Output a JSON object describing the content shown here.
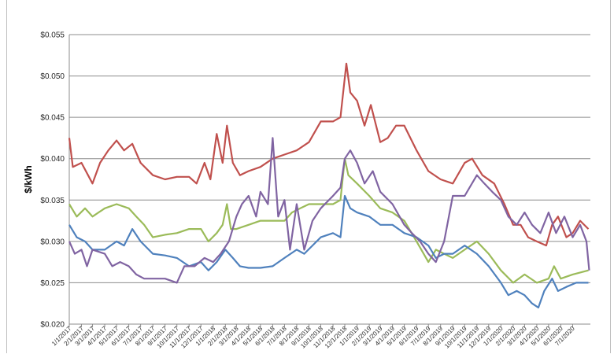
{
  "chart_data": {
    "type": "line",
    "title": "",
    "xlabel": "",
    "ylabel": "$/kWh",
    "ylim": [
      0.02,
      0.055
    ],
    "y_ticks": [
      0.02,
      0.025,
      0.03,
      0.035,
      0.04,
      0.045,
      0.05,
      0.055
    ],
    "y_tick_labels": [
      "$0.020",
      "$0.025",
      "$0.030",
      "$0.035",
      "$0.040",
      "$0.045",
      "$0.050",
      "$0.055"
    ],
    "x_start": "2017-01-01",
    "x_end": "2020-08-15",
    "x_tick_labels": [
      "1/1/2017",
      "2/1/2017",
      "3/1/2017",
      "4/1/2017",
      "5/1/2017",
      "6/1/2017",
      "7/1/2017",
      "8/1/2017",
      "9/1/2017",
      "10/1/2017",
      "11/1/2017",
      "12/1/2017",
      "1/1/2018",
      "2/1/2018",
      "3/1/2018",
      "4/1/2018",
      "5/1/2018",
      "6/1/2018",
      "7/1/2018",
      "8/1/2018",
      "9/1/2018",
      "10/1/2018",
      "11/1/2018",
      "12/1/2018",
      "1/1/2019",
      "2/1/2019",
      "3/1/2019",
      "4/1/2019",
      "5/1/2019",
      "6/1/2019",
      "7/1/2019",
      "8/1/2019",
      "9/1/2019",
      "10/1/2019",
      "11/1/2019",
      "12/1/2019",
      "1/1/2020",
      "2/1/2020",
      "3/1/2020",
      "4/1/2020",
      "5/1/2020",
      "6/1/2020",
      "7/1/2020"
    ],
    "grid": true,
    "legend": "none",
    "series": [
      {
        "color": "#c0504d",
        "points": [
          [
            "2017-01-01",
            0.0425
          ],
          [
            "2017-01-10",
            0.039
          ],
          [
            "2017-02-01",
            0.0395
          ],
          [
            "2017-03-01",
            0.037
          ],
          [
            "2017-03-20",
            0.0395
          ],
          [
            "2017-04-10",
            0.041
          ],
          [
            "2017-05-01",
            0.0422
          ],
          [
            "2017-05-20",
            0.041
          ],
          [
            "2017-06-10",
            0.0418
          ],
          [
            "2017-07-01",
            0.0395
          ],
          [
            "2017-08-01",
            0.038
          ],
          [
            "2017-09-01",
            0.0375
          ],
          [
            "2017-10-01",
            0.0378
          ],
          [
            "2017-11-01",
            0.0378
          ],
          [
            "2017-11-20",
            0.037
          ],
          [
            "2017-12-10",
            0.0395
          ],
          [
            "2017-12-25",
            0.0375
          ],
          [
            "2018-01-10",
            0.043
          ],
          [
            "2018-01-25",
            0.0395
          ],
          [
            "2018-02-05",
            0.044
          ],
          [
            "2018-02-20",
            0.0395
          ],
          [
            "2018-03-10",
            0.038
          ],
          [
            "2018-04-01",
            0.0385
          ],
          [
            "2018-05-01",
            0.039
          ],
          [
            "2018-06-01",
            0.04
          ],
          [
            "2018-07-01",
            0.0405
          ],
          [
            "2018-08-01",
            0.041
          ],
          [
            "2018-09-01",
            0.042
          ],
          [
            "2018-10-01",
            0.0445
          ],
          [
            "2018-11-01",
            0.0445
          ],
          [
            "2018-11-20",
            0.045
          ],
          [
            "2018-12-05",
            0.0515
          ],
          [
            "2018-12-15",
            0.048
          ],
          [
            "2019-01-01",
            0.047
          ],
          [
            "2019-01-20",
            0.044
          ],
          [
            "2019-02-05",
            0.0465
          ],
          [
            "2019-03-01",
            0.042
          ],
          [
            "2019-03-20",
            0.0425
          ],
          [
            "2019-04-10",
            0.044
          ],
          [
            "2019-05-01",
            0.044
          ],
          [
            "2019-06-01",
            0.041
          ],
          [
            "2019-07-01",
            0.0385
          ],
          [
            "2019-08-01",
            0.0375
          ],
          [
            "2019-09-01",
            0.037
          ],
          [
            "2019-10-01",
            0.0395
          ],
          [
            "2019-10-20",
            0.04
          ],
          [
            "2019-11-15",
            0.038
          ],
          [
            "2019-12-15",
            0.037
          ],
          [
            "2020-01-10",
            0.0345
          ],
          [
            "2020-02-01",
            0.032
          ],
          [
            "2020-02-20",
            0.032
          ],
          [
            "2020-03-10",
            0.0305
          ],
          [
            "2020-04-01",
            0.03
          ],
          [
            "2020-04-25",
            0.0295
          ],
          [
            "2020-05-10",
            0.032
          ],
          [
            "2020-05-25",
            0.033
          ],
          [
            "2020-06-15",
            0.0305
          ],
          [
            "2020-07-01",
            0.031
          ],
          [
            "2020-07-20",
            0.0325
          ],
          [
            "2020-08-10",
            0.0315
          ]
        ]
      },
      {
        "color": "#9bbb59",
        "points": [
          [
            "2017-01-01",
            0.0345
          ],
          [
            "2017-01-20",
            0.033
          ],
          [
            "2017-02-10",
            0.034
          ],
          [
            "2017-03-01",
            0.033
          ],
          [
            "2017-04-01",
            0.034
          ],
          [
            "2017-05-01",
            0.0345
          ],
          [
            "2017-06-01",
            0.034
          ],
          [
            "2017-06-20",
            0.033
          ],
          [
            "2017-07-10",
            0.032
          ],
          [
            "2017-08-01",
            0.0305
          ],
          [
            "2017-09-01",
            0.0308
          ],
          [
            "2017-10-01",
            0.031
          ],
          [
            "2017-11-01",
            0.0315
          ],
          [
            "2017-12-01",
            0.0315
          ],
          [
            "2017-12-20",
            0.03
          ],
          [
            "2018-01-10",
            0.031
          ],
          [
            "2018-01-25",
            0.032
          ],
          [
            "2018-02-05",
            0.0345
          ],
          [
            "2018-02-15",
            0.0315
          ],
          [
            "2018-03-01",
            0.0315
          ],
          [
            "2018-04-01",
            0.032
          ],
          [
            "2018-05-01",
            0.0325
          ],
          [
            "2018-06-01",
            0.0325
          ],
          [
            "2018-07-01",
            0.0325
          ],
          [
            "2018-07-20",
            0.0335
          ],
          [
            "2018-08-10",
            0.034
          ],
          [
            "2018-09-01",
            0.0345
          ],
          [
            "2018-10-01",
            0.0345
          ],
          [
            "2018-11-01",
            0.0345
          ],
          [
            "2018-11-20",
            0.035
          ],
          [
            "2018-12-01",
            0.04
          ],
          [
            "2018-12-10",
            0.038
          ],
          [
            "2019-01-01",
            0.037
          ],
          [
            "2019-02-01",
            0.0355
          ],
          [
            "2019-03-01",
            0.034
          ],
          [
            "2019-04-01",
            0.0335
          ],
          [
            "2019-05-01",
            0.0325
          ],
          [
            "2019-06-01",
            0.03
          ],
          [
            "2019-07-01",
            0.0275
          ],
          [
            "2019-07-20",
            0.029
          ],
          [
            "2019-08-10",
            0.0285
          ],
          [
            "2019-09-01",
            0.028
          ],
          [
            "2019-10-01",
            0.029
          ],
          [
            "2019-11-01",
            0.03
          ],
          [
            "2019-12-01",
            0.0285
          ],
          [
            "2020-01-01",
            0.0265
          ],
          [
            "2020-02-01",
            0.025
          ],
          [
            "2020-03-01",
            0.026
          ],
          [
            "2020-04-01",
            0.025
          ],
          [
            "2020-05-01",
            0.0255
          ],
          [
            "2020-05-15",
            0.027
          ],
          [
            "2020-06-01",
            0.0255
          ],
          [
            "2020-07-01",
            0.026
          ],
          [
            "2020-08-10",
            0.0265
          ]
        ]
      },
      {
        "color": "#4f81bd",
        "points": [
          [
            "2017-01-01",
            0.032
          ],
          [
            "2017-01-20",
            0.0305
          ],
          [
            "2017-02-10",
            0.03
          ],
          [
            "2017-03-01",
            0.029
          ],
          [
            "2017-04-01",
            0.029
          ],
          [
            "2017-05-01",
            0.03
          ],
          [
            "2017-05-20",
            0.0295
          ],
          [
            "2017-06-10",
            0.0315
          ],
          [
            "2017-07-01",
            0.03
          ],
          [
            "2017-08-01",
            0.0285
          ],
          [
            "2017-09-01",
            0.0283
          ],
          [
            "2017-10-01",
            0.028
          ],
          [
            "2017-11-01",
            0.027
          ],
          [
            "2017-12-01",
            0.0275
          ],
          [
            "2017-12-20",
            0.0265
          ],
          [
            "2018-01-10",
            0.0275
          ],
          [
            "2018-02-01",
            0.029
          ],
          [
            "2018-02-20",
            0.028
          ],
          [
            "2018-03-10",
            0.027
          ],
          [
            "2018-04-01",
            0.0268
          ],
          [
            "2018-05-01",
            0.0268
          ],
          [
            "2018-06-01",
            0.027
          ],
          [
            "2018-07-01",
            0.028
          ],
          [
            "2018-08-01",
            0.029
          ],
          [
            "2018-08-20",
            0.0285
          ],
          [
            "2018-09-10",
            0.0295
          ],
          [
            "2018-10-01",
            0.0305
          ],
          [
            "2018-11-01",
            0.031
          ],
          [
            "2018-11-20",
            0.0305
          ],
          [
            "2018-12-01",
            0.0355
          ],
          [
            "2018-12-15",
            0.034
          ],
          [
            "2019-01-01",
            0.0335
          ],
          [
            "2019-02-01",
            0.033
          ],
          [
            "2019-03-01",
            0.032
          ],
          [
            "2019-04-01",
            0.032
          ],
          [
            "2019-05-01",
            0.031
          ],
          [
            "2019-06-01",
            0.0305
          ],
          [
            "2019-07-01",
            0.0295
          ],
          [
            "2019-07-20",
            0.028
          ],
          [
            "2019-08-10",
            0.0285
          ],
          [
            "2019-09-01",
            0.0285
          ],
          [
            "2019-10-01",
            0.0295
          ],
          [
            "2019-11-01",
            0.0285
          ],
          [
            "2019-12-01",
            0.027
          ],
          [
            "2020-01-01",
            0.025
          ],
          [
            "2020-01-20",
            0.0235
          ],
          [
            "2020-02-10",
            0.024
          ],
          [
            "2020-03-01",
            0.0235
          ],
          [
            "2020-03-20",
            0.0225
          ],
          [
            "2020-04-05",
            0.022
          ],
          [
            "2020-04-20",
            0.024
          ],
          [
            "2020-05-10",
            0.0255
          ],
          [
            "2020-05-25",
            0.024
          ],
          [
            "2020-06-15",
            0.0245
          ],
          [
            "2020-07-10",
            0.025
          ],
          [
            "2020-08-10",
            0.025
          ]
        ]
      },
      {
        "color": "#8064a2",
        "points": [
          [
            "2017-01-01",
            0.03
          ],
          [
            "2017-01-15",
            0.0285
          ],
          [
            "2017-02-01",
            0.029
          ],
          [
            "2017-02-15",
            0.027
          ],
          [
            "2017-03-01",
            0.029
          ],
          [
            "2017-04-01",
            0.0285
          ],
          [
            "2017-04-20",
            0.027
          ],
          [
            "2017-05-10",
            0.0275
          ],
          [
            "2017-06-01",
            0.027
          ],
          [
            "2017-06-20",
            0.026
          ],
          [
            "2017-07-10",
            0.0255
          ],
          [
            "2017-08-01",
            0.0255
          ],
          [
            "2017-09-01",
            0.0255
          ],
          [
            "2017-10-01",
            0.025
          ],
          [
            "2017-10-20",
            0.027
          ],
          [
            "2017-11-15",
            0.027
          ],
          [
            "2017-12-10",
            0.028
          ],
          [
            "2018-01-01",
            0.0275
          ],
          [
            "2018-01-20",
            0.0285
          ],
          [
            "2018-02-10",
            0.03
          ],
          [
            "2018-03-01",
            0.033
          ],
          [
            "2018-03-15",
            0.0345
          ],
          [
            "2018-04-01",
            0.0355
          ],
          [
            "2018-04-20",
            0.033
          ],
          [
            "2018-05-01",
            0.036
          ],
          [
            "2018-05-20",
            0.0345
          ],
          [
            "2018-06-01",
            0.0425
          ],
          [
            "2018-06-15",
            0.033
          ],
          [
            "2018-07-01",
            0.035
          ],
          [
            "2018-07-15",
            0.029
          ],
          [
            "2018-08-01",
            0.0345
          ],
          [
            "2018-08-20",
            0.029
          ],
          [
            "2018-09-10",
            0.0325
          ],
          [
            "2018-10-01",
            0.034
          ],
          [
            "2018-11-01",
            0.0355
          ],
          [
            "2018-11-20",
            0.0365
          ],
          [
            "2018-12-01",
            0.04
          ],
          [
            "2018-12-15",
            0.041
          ],
          [
            "2019-01-01",
            0.0395
          ],
          [
            "2019-01-20",
            0.037
          ],
          [
            "2019-02-10",
            0.0385
          ],
          [
            "2019-03-01",
            0.036
          ],
          [
            "2019-04-01",
            0.0345
          ],
          [
            "2019-05-01",
            0.032
          ],
          [
            "2019-05-20",
            0.031
          ],
          [
            "2019-06-10",
            0.03
          ],
          [
            "2019-07-01",
            0.0285
          ],
          [
            "2019-07-20",
            0.0275
          ],
          [
            "2019-08-10",
            0.03
          ],
          [
            "2019-09-01",
            0.0355
          ],
          [
            "2019-10-01",
            0.0355
          ],
          [
            "2019-11-01",
            0.038
          ],
          [
            "2019-11-20",
            0.037
          ],
          [
            "2019-12-10",
            0.036
          ],
          [
            "2020-01-01",
            0.035
          ],
          [
            "2020-01-20",
            0.033
          ],
          [
            "2020-02-10",
            0.032
          ],
          [
            "2020-03-01",
            0.0335
          ],
          [
            "2020-03-20",
            0.032
          ],
          [
            "2020-04-10",
            0.031
          ],
          [
            "2020-05-01",
            0.0335
          ],
          [
            "2020-05-20",
            0.031
          ],
          [
            "2020-06-10",
            0.033
          ],
          [
            "2020-07-01",
            0.0305
          ],
          [
            "2020-07-20",
            0.032
          ],
          [
            "2020-08-05",
            0.03
          ],
          [
            "2020-08-12",
            0.0265
          ]
        ]
      }
    ]
  }
}
